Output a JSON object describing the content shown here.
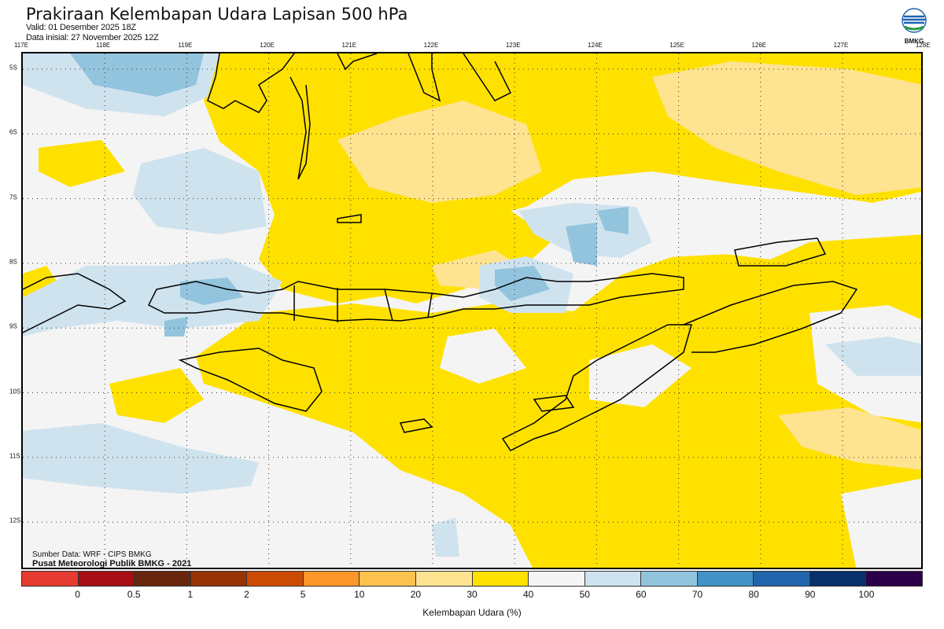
{
  "header": {
    "title": "Prakiraan Kelembapan Udara Lapisan 500 hPa",
    "valid": "Valid: 01 Desember 2025 18Z",
    "initial": "Data inisial: 27 November 2025 12Z"
  },
  "logo": {
    "text": "BMKG"
  },
  "map": {
    "lon_labels": [
      "117E",
      "118E",
      "119E",
      "120E",
      "121E",
      "122E",
      "123E",
      "124E",
      "125E",
      "126E",
      "127E",
      "128E"
    ],
    "lat_labels": [
      "5S",
      "6S",
      "7S",
      "8S",
      "9S",
      "10S",
      "11S",
      "12S"
    ],
    "source": "Sumber Data: WRF - CIPS BMKG",
    "credit": "Pusat Meteorologi Publik BMKG - 2021"
  },
  "colorbar": {
    "colors": [
      "#e53b30",
      "#a50f15",
      "#67260d",
      "#973304",
      "#cc4b02",
      "#fe9729",
      "#fec24f",
      "#fee391",
      "#ffe100",
      "#f5f5f5",
      "#cfe3ef",
      "#93c4de",
      "#4292c6",
      "#2166ac",
      "#08306b",
      "#2d004b"
    ],
    "ticks": [
      "0",
      "0.5",
      "1",
      "2",
      "5",
      "10",
      "20",
      "30",
      "40",
      "50",
      "60",
      "70",
      "80",
      "90",
      "100"
    ],
    "title": "Kelembapan Udara (%)"
  }
}
